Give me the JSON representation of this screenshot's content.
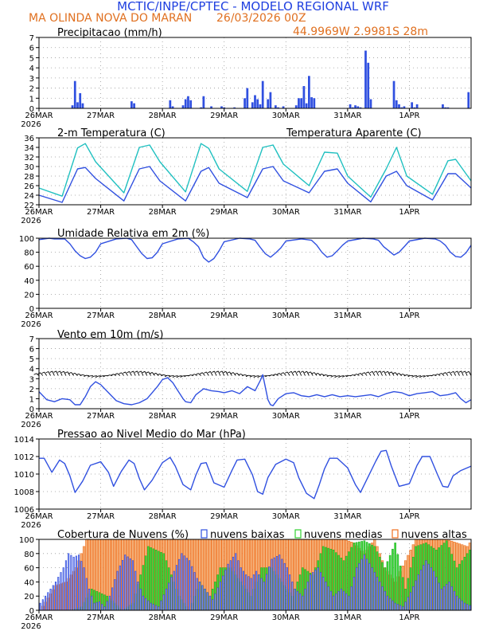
{
  "header": {
    "title_line1": "MCTIC/INPE/CPTEC - MODELO REGIONAL WRF",
    "location": "MA OLINDA NOVA DO MARAN",
    "run": "26/03/2026 00Z",
    "coords": "44.9969W 2.9981S 28m"
  },
  "colors": {
    "blue": "#3050e0",
    "orange": "#f07020",
    "cyan": "#20c0c0",
    "green": "#30d030",
    "low_cloud_fill": "#a0a8f0",
    "title_blue": "#2040e0",
    "title_orange": "#e07020"
  },
  "x_axis": {
    "hours": 168,
    "day_ticks": [
      "26MAR",
      "27MAR",
      "28MAR",
      "29MAR",
      "30MAR",
      "31MAR",
      "1APR"
    ],
    "year_label": "2026"
  },
  "chart_data": [
    {
      "type": "bar",
      "title": "Precipitacao (mm/h)",
      "ylim": [
        0,
        7
      ],
      "yticks": [
        "0",
        "1",
        "2",
        "3",
        "4",
        "5",
        "6",
        "7"
      ],
      "x_hours": [
        13,
        14,
        15,
        16,
        17,
        36,
        37,
        51,
        52,
        56,
        57,
        58,
        59,
        63,
        64,
        67,
        71,
        72,
        76,
        80,
        81,
        83,
        84,
        85,
        86,
        87,
        89,
        90,
        92,
        93,
        95,
        100,
        101,
        102,
        103,
        104,
        105,
        106,
        107,
        121,
        122,
        123,
        124,
        125,
        127,
        128,
        129,
        138,
        139,
        140,
        141,
        142,
        145,
        146,
        147,
        157,
        158,
        159,
        167
      ],
      "values": [
        0.3,
        2.7,
        0.6,
        1.5,
        0.5,
        0.7,
        0.5,
        0.8,
        0.2,
        0.3,
        0.9,
        1.2,
        0.8,
        0.1,
        1.2,
        0.2,
        0.2,
        0.1,
        0.1,
        1.0,
        2.0,
        0.6,
        1.3,
        0.9,
        0.4,
        2.7,
        0.9,
        1.6,
        0.3,
        0.1,
        0.2,
        0.3,
        1.0,
        1.0,
        2.2,
        0.5,
        3.2,
        1.1,
        1.0,
        0.4,
        0.1,
        0.3,
        0.2,
        0.1,
        5.7,
        4.5,
        0.9,
        2.7,
        0.8,
        0.4,
        0.1,
        0.2,
        0.6,
        0.1,
        0.4,
        0.4,
        0.1,
        0.1,
        1.6
      ]
    },
    {
      "type": "line",
      "title": "2-m Temperatura (C)",
      "legend_extra": "Temperatura Aparente (C)",
      "ylim": [
        22,
        36
      ],
      "yticks": [
        "22",
        "24",
        "26",
        "28",
        "30",
        "32",
        "34",
        "36"
      ],
      "series": [
        {
          "name": "2-m Temperatura (C)",
          "x": [
            0,
            9,
            15,
            18,
            22,
            33,
            39,
            43,
            47,
            57,
            63,
            66,
            70,
            81,
            87,
            91,
            95,
            105,
            111,
            116,
            120,
            129,
            135,
            139,
            143,
            153,
            159,
            162,
            168
          ],
          "values": [
            24,
            22.5,
            29.5,
            29.8,
            27.5,
            22.8,
            29.5,
            30.0,
            27,
            22.8,
            29,
            29.8,
            26.5,
            23.5,
            29.5,
            30.0,
            27,
            24.5,
            29,
            29.5,
            26.5,
            22.6,
            28,
            29,
            26,
            23.0,
            28.5,
            28.5,
            25.5
          ]
        },
        {
          "name": "Temperatura Aparente (C)",
          "x": [
            0,
            9,
            15,
            18,
            22,
            33,
            39,
            43,
            47,
            57,
            63,
            66,
            70,
            81,
            87,
            91,
            95,
            105,
            111,
            116,
            120,
            129,
            135,
            139,
            143,
            153,
            159,
            162,
            168
          ],
          "values": [
            25.5,
            23.8,
            33.9,
            34.8,
            31,
            24.5,
            34,
            34.5,
            31,
            24.7,
            34.8,
            33.8,
            29.5,
            24.8,
            34.0,
            34.5,
            30.5,
            26.0,
            33,
            32.8,
            28,
            23.6,
            29.5,
            34,
            28,
            24.2,
            31.2,
            31.5,
            27.0
          ]
        }
      ]
    },
    {
      "type": "line",
      "title": "Umidade Relativa em 2m (%)",
      "ylim": [
        0,
        100
      ],
      "yticks": [
        "0",
        "20",
        "40",
        "60",
        "80",
        "100"
      ],
      "x": [
        0,
        4,
        6,
        10,
        12,
        14,
        16,
        18,
        20,
        22,
        24,
        30,
        34,
        36,
        38,
        40,
        42,
        44,
        46,
        48,
        54,
        58,
        60,
        62,
        64,
        66,
        68,
        70,
        72,
        78,
        82,
        84,
        86,
        88,
        90,
        92,
        94,
        96,
        102,
        106,
        108,
        110,
        112,
        114,
        116,
        118,
        120,
        126,
        130,
        132,
        134,
        136,
        138,
        140,
        142,
        144,
        150,
        154,
        156,
        158,
        160,
        162,
        164,
        166,
        168
      ],
      "values": [
        98,
        100,
        99,
        99,
        92,
        82,
        75,
        71,
        73,
        80,
        92,
        99,
        100,
        98,
        88,
        78,
        71,
        72,
        80,
        92,
        99,
        100,
        95,
        88,
        72,
        66,
        71,
        82,
        95,
        100,
        99,
        97,
        87,
        78,
        73,
        79,
        86,
        96,
        99,
        97,
        90,
        80,
        73,
        75,
        82,
        90,
        96,
        100,
        99,
        97,
        88,
        82,
        76,
        80,
        88,
        96,
        100,
        99,
        96,
        90,
        80,
        74,
        73,
        79,
        90
      ]
    },
    {
      "type": "line",
      "title": "Vento em 10m (m/s)",
      "ylim": [
        0,
        7
      ],
      "yticks": [
        "0",
        "1",
        "2",
        "3",
        "4",
        "5",
        "6",
        "7"
      ],
      "x": [
        0,
        3,
        6,
        9,
        12,
        14,
        16,
        18,
        20,
        22,
        24,
        27,
        30,
        33,
        36,
        39,
        42,
        44,
        46,
        48,
        50,
        52,
        54,
        56,
        57,
        59,
        61,
        64,
        67,
        70,
        72,
        75,
        78,
        81,
        84,
        86,
        87,
        89,
        90,
        91,
        93,
        96,
        99,
        102,
        105,
        108,
        111,
        114,
        117,
        120,
        123,
        126,
        129,
        132,
        135,
        138,
        141,
        144,
        147,
        150,
        153,
        156,
        159,
        162,
        164,
        166,
        168
      ],
      "values": [
        1.7,
        0.9,
        0.7,
        1.0,
        0.9,
        0.4,
        0.4,
        1.2,
        2.2,
        2.7,
        2.4,
        1.6,
        0.8,
        0.5,
        0.4,
        0.6,
        1.0,
        1.6,
        2.2,
        2.9,
        3.1,
        2.6,
        1.8,
        1.0,
        0.7,
        0.6,
        1.4,
        2.0,
        1.8,
        1.7,
        1.6,
        1.8,
        1.5,
        2.2,
        1.8,
        2.8,
        3.4,
        0.9,
        0.4,
        0.3,
        1.0,
        1.5,
        1.6,
        1.3,
        1.2,
        1.4,
        1.2,
        1.4,
        1.2,
        1.3,
        1.2,
        1.3,
        1.4,
        1.2,
        1.5,
        1.7,
        1.6,
        1.3,
        1.5,
        1.6,
        1.7,
        1.3,
        1.4,
        1.6,
        1.0,
        0.6,
        0.9
      ],
      "barbs": "wind barbs at about 3.3 m/s level, every hour"
    },
    {
      "type": "line",
      "title": "Pressao ao Nivel Medio do Mar (hPa)",
      "ylim": [
        1006,
        1014
      ],
      "yticks": [
        "1006",
        "1008",
        "1010",
        "1012",
        "1014"
      ],
      "x": [
        0,
        2,
        5,
        8,
        10,
        12,
        14,
        17,
        20,
        24,
        27,
        29,
        32,
        35,
        37,
        39,
        41,
        44,
        48,
        51,
        53,
        56,
        59,
        61,
        63,
        65,
        68,
        72,
        75,
        77,
        80,
        83,
        85,
        87,
        89,
        92,
        96,
        99,
        101,
        104,
        107,
        109,
        111,
        113,
        116,
        120,
        123,
        125,
        128,
        131,
        133,
        135,
        137,
        140,
        144,
        147,
        149,
        152,
        155,
        157,
        159,
        161,
        164,
        168
      ],
      "values": [
        1011.8,
        1011.8,
        1010.2,
        1011.6,
        1011.2,
        1009.8,
        1007.9,
        1009.2,
        1011.0,
        1011.4,
        1010.2,
        1008.6,
        1010.3,
        1011.6,
        1011.2,
        1009.5,
        1008.2,
        1009.3,
        1011.3,
        1011.9,
        1010.9,
        1008.8,
        1008.2,
        1009.9,
        1011.2,
        1011.3,
        1009.0,
        1008.5,
        1010.4,
        1011.6,
        1011.7,
        1009.9,
        1008.0,
        1007.7,
        1009.6,
        1011.1,
        1011.7,
        1011.3,
        1009.6,
        1007.8,
        1007.2,
        1008.8,
        1010.6,
        1011.8,
        1011.8,
        1010.7,
        1008.8,
        1007.9,
        1009.7,
        1011.5,
        1012.6,
        1012.7,
        1010.9,
        1008.6,
        1008.9,
        1011.0,
        1012.0,
        1012.0,
        1009.9,
        1008.6,
        1008.5,
        1009.8,
        1010.4,
        1010.9
      ]
    },
    {
      "type": "bar",
      "title": "Cobertura de Nuvens (%)",
      "legend": [
        "nuvens baixas",
        "nuvens medias",
        "nuvens altas"
      ],
      "ylim": [
        0,
        100
      ],
      "yticks": [
        "0",
        "20",
        "40",
        "60",
        "80",
        "100"
      ],
      "series": [
        {
          "name": "nuvens baixas",
          "x": [
            0,
            3,
            6,
            9,
            11,
            13,
            15,
            17,
            19,
            21,
            23,
            25,
            27,
            30,
            33,
            36,
            38,
            40,
            43,
            46,
            49,
            52,
            55,
            58,
            61,
            64,
            67,
            70,
            73,
            76,
            78,
            80,
            82,
            84,
            87,
            90,
            93,
            96,
            99,
            102,
            105,
            108,
            111,
            114,
            117,
            120,
            123,
            126,
            129,
            132,
            135,
            138,
            141,
            144,
            147,
            150,
            153,
            156,
            159,
            162,
            165,
            168
          ],
          "values": [
            10,
            25,
            40,
            60,
            80,
            75,
            78,
            60,
            30,
            10,
            12,
            5,
            20,
            55,
            78,
            70,
            40,
            20,
            10,
            5,
            30,
            55,
            80,
            70,
            45,
            30,
            15,
            40,
            65,
            80,
            60,
            50,
            45,
            55,
            40,
            72,
            78,
            60,
            30,
            20,
            50,
            60,
            40,
            20,
            30,
            20,
            60,
            78,
            60,
            40,
            20,
            10,
            5,
            25,
            50,
            70,
            55,
            30,
            40,
            20,
            10,
            5
          ]
        },
        {
          "name": "nuvens medias",
          "x": [
            0,
            6,
            12,
            16,
            20,
            26,
            32,
            36,
            42,
            48,
            54,
            58,
            62,
            66,
            70,
            74,
            78,
            82,
            86,
            90,
            94,
            98,
            102,
            106,
            110,
            114,
            118,
            122,
            126,
            130,
            134,
            138,
            142,
            146,
            150,
            154,
            158,
            162,
            168
          ],
          "values": [
            0,
            0,
            0,
            5,
            30,
            20,
            0,
            10,
            90,
            80,
            20,
            0,
            40,
            20,
            60,
            60,
            40,
            20,
            60,
            60,
            40,
            20,
            60,
            50,
            90,
            85,
            70,
            95,
            98,
            90,
            60,
            95,
            30,
            90,
            95,
            85,
            98,
            60,
            90
          ]
        },
        {
          "name": "nuvens altas",
          "x": [
            0,
            6,
            10,
            14,
            18,
            22,
            26,
            30,
            34,
            38,
            42,
            46,
            50,
            54,
            58,
            62,
            66,
            70,
            74,
            78,
            82,
            86,
            90,
            94,
            98,
            102,
            106,
            110,
            114,
            118,
            122,
            126,
            130,
            134,
            138,
            142,
            146,
            150,
            154,
            158,
            162,
            166,
            168
          ],
          "values": [
            0,
            35,
            40,
            60,
            100,
            100,
            100,
            100,
            100,
            100,
            100,
            100,
            100,
            100,
            100,
            100,
            100,
            100,
            100,
            100,
            100,
            100,
            100,
            100,
            100,
            100,
            100,
            100,
            100,
            100,
            95,
            80,
            100,
            60,
            40,
            70,
            100,
            100,
            100,
            100,
            95,
            90,
            100
          ]
        }
      ]
    }
  ]
}
